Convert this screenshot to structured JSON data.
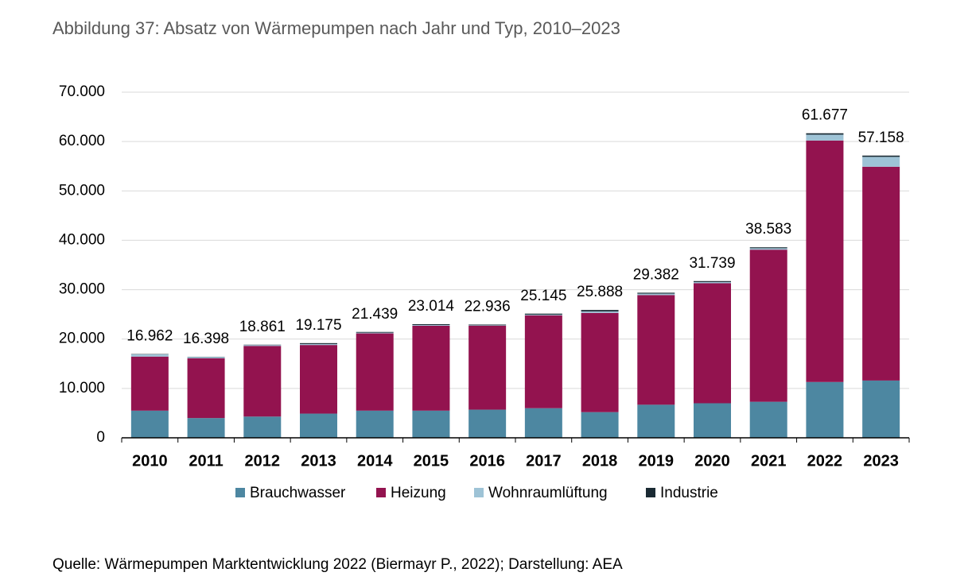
{
  "chart_data": {
    "type": "stacked-bar",
    "title": "Abbildung 37: Absatz von Wärmepumpen nach Jahr und Typ, 2010–2023",
    "source": "Quelle: Wärmepumpen Marktentwicklung 2022 (Biermayr P., 2022); Darstellung: AEA",
    "categories": [
      "2010",
      "2011",
      "2012",
      "2013",
      "2014",
      "2015",
      "2016",
      "2017",
      "2018",
      "2019",
      "2020",
      "2021",
      "2022",
      "2023"
    ],
    "series": [
      {
        "name": "Brauchwasser",
        "color": "#4d87a1",
        "values": [
          5500,
          4000,
          4300,
          4900,
          5500,
          5500,
          5700,
          6000,
          5200,
          6700,
          7000,
          7300,
          11300,
          11600
        ]
      },
      {
        "name": "Heizung",
        "color": "#93134f",
        "values": [
          10950,
          12100,
          14300,
          13900,
          15650,
          17200,
          17000,
          18800,
          20100,
          22200,
          24300,
          30800,
          48900,
          43300
        ]
      },
      {
        "name": "Wohnraumlüftung",
        "color": "#9ec3d6",
        "values": [
          450,
          250,
          200,
          200,
          150,
          150,
          100,
          150,
          300,
          300,
          250,
          300,
          1200,
          2000
        ]
      },
      {
        "name": "Industrie",
        "color": "#1a2a33",
        "values": [
          62,
          48,
          61,
          175,
          139,
          164,
          136,
          195,
          288,
          182,
          189,
          183,
          277,
          258
        ]
      }
    ],
    "totals": {
      "values": [
        16962,
        16398,
        18861,
        19175,
        21439,
        23014,
        22936,
        25145,
        25888,
        29382,
        31739,
        38583,
        61677,
        57158
      ],
      "value_labels": [
        "16.962",
        "16.398",
        "18.861",
        "19.175",
        "21.439",
        "23.014",
        "22.936",
        "25.145",
        "25.888",
        "29.382",
        "31.739",
        "38.583",
        "61.677",
        "57.158"
      ]
    },
    "ylim": [
      0,
      70000
    ],
    "yticks": [
      0,
      {
        "value": 10000,
        "label": "10.000"
      },
      {
        "value": 20000,
        "label": "20.000"
      },
      {
        "value": 30000,
        "label": "30.000"
      },
      {
        "value": 40000,
        "label": "40.000"
      },
      {
        "value": 50000,
        "label": "50.000"
      },
      {
        "value": 60000,
        "label": "60.000"
      },
      {
        "value": 70000,
        "label": "70.000"
      }
    ],
    "grid": true
  }
}
